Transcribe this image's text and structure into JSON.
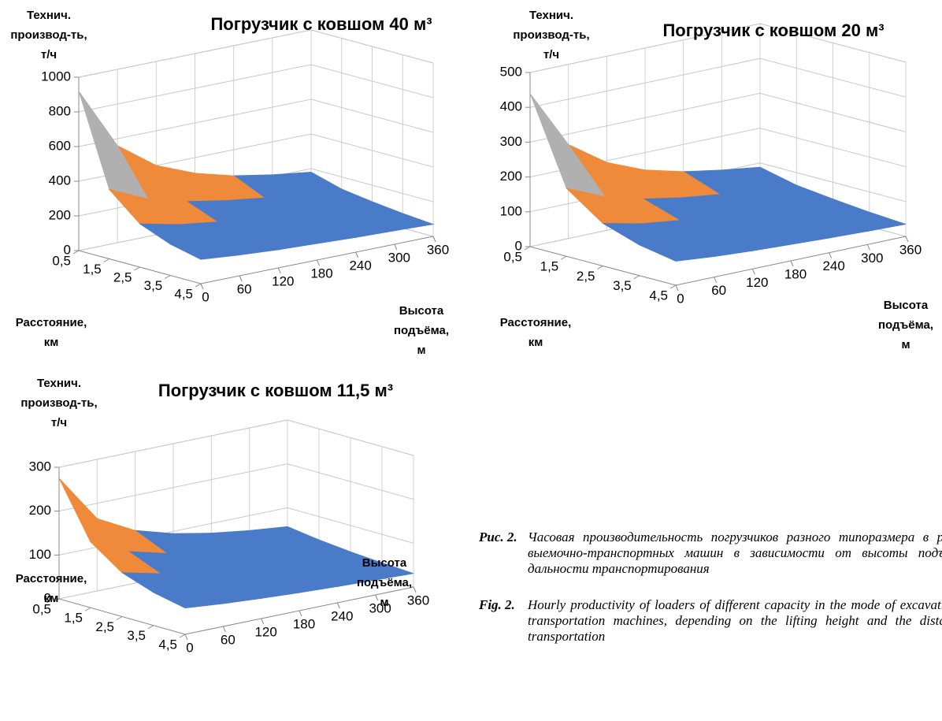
{
  "chart_data": [
    {
      "type": "surface",
      "title": "Погрузчик с ковшом 40 м³",
      "z_label": "Технич. производ-ть, т/ч",
      "distance_label": "Расстояние, км",
      "height_label": "Высота подъёма, м",
      "distances": [
        {
          "value": 0.5,
          "label": "0,5"
        },
        {
          "value": 1.5,
          "label": "1,5"
        },
        {
          "value": 2.5,
          "label": "2,5"
        },
        {
          "value": 3.5,
          "label": "3,5"
        },
        {
          "value": 4.5,
          "label": "4,5"
        }
      ],
      "heights": [
        0,
        60,
        120,
        180,
        240,
        300,
        360
      ],
      "values": [
        [
          920,
          560,
          400,
          310,
          250,
          210,
          180
        ],
        [
          400,
          300,
          240,
          200,
          170,
          150,
          130
        ],
        [
          250,
          200,
          170,
          150,
          130,
          115,
          105
        ],
        [
          180,
          150,
          130,
          115,
          105,
          95,
          85
        ],
        [
          140,
          120,
          105,
          95,
          85,
          78,
          70
        ]
      ],
      "zlim": [
        0,
        1000
      ],
      "zticks": [
        0,
        200,
        400,
        600,
        800,
        1000
      ],
      "band_colors": [
        "#4a7bc8",
        "#ee8a3a",
        "#b0b0b0",
        "#fdbf1e",
        "#5b9bd5"
      ]
    },
    {
      "type": "surface",
      "title": "Погрузчик с ковшом 20 м³",
      "z_label": "Технич. производ-ть, т/ч",
      "distance_label": "Расстояние, км",
      "height_label": "Высота подъёма, м",
      "distances": [
        {
          "value": 0.5,
          "label": "0,5"
        },
        {
          "value": 1.5,
          "label": "1,5"
        },
        {
          "value": 2.5,
          "label": "2,5"
        },
        {
          "value": 3.5,
          "label": "3,5"
        },
        {
          "value": 4.5,
          "label": "4,5"
        }
      ],
      "heights": [
        0,
        60,
        120,
        180,
        240,
        300,
        360
      ],
      "values": [
        [
          440,
          270,
          195,
          150,
          122,
          103,
          88
        ],
        [
          195,
          148,
          118,
          98,
          84,
          74,
          64
        ],
        [
          122,
          98,
          84,
          74,
          64,
          57,
          52
        ],
        [
          88,
          74,
          64,
          57,
          52,
          47,
          42
        ],
        [
          69,
          59,
          52,
          47,
          42,
          38,
          35
        ]
      ],
      "zlim": [
        0,
        500
      ],
      "zticks": [
        0,
        100,
        200,
        300,
        400,
        500
      ],
      "band_colors": [
        "#4a7bc8",
        "#ee8a3a",
        "#b0b0b0",
        "#fdbf1e",
        "#5b9bd5"
      ]
    },
    {
      "type": "surface",
      "title": "Погрузчик с ковшом 11,5 м³",
      "z_label": "Технич. производ-ть, т/ч",
      "distance_label": "Расстояние, км",
      "height_label": "Высота подъёма, м",
      "distances": [
        {
          "value": 0.5,
          "label": "0,5"
        },
        {
          "value": 1.5,
          "label": "1,5"
        },
        {
          "value": 2.5,
          "label": "2,5"
        },
        {
          "value": 3.5,
          "label": "3,5"
        },
        {
          "value": 4.5,
          "label": "4,5"
        }
      ],
      "heights": [
        0,
        60,
        120,
        180,
        240,
        300,
        360
      ],
      "values": [
        [
          275,
          165,
          120,
          95,
          78,
          66,
          57
        ],
        [
          150,
          110,
          88,
          72,
          62,
          54,
          47
        ],
        [
          100,
          80,
          66,
          57,
          50,
          44,
          40
        ],
        [
          75,
          63,
          54,
          48,
          43,
          39,
          35
        ],
        [
          60,
          52,
          46,
          41,
          37,
          34,
          31
        ]
      ],
      "zlim": [
        0,
        300
      ],
      "zticks": [
        0,
        100,
        200,
        300
      ],
      "band_colors": [
        "#4a7bc8",
        "#ee8a3a",
        "#c4c4c4"
      ]
    }
  ],
  "caption": {
    "ru_label": "Рис. 2.",
    "ru_text": "Часовая производительность погрузчиков разного типоразмера в режиме выемочно-транспортных машин в зависимости от высоты подъема и дальности транспортирования",
    "en_label": "Fig. 2.",
    "en_text": "Hourly productivity of loaders of different capacity in the mode of excavation and transportation machines, depending on the lifting height and the distance of transportation"
  }
}
